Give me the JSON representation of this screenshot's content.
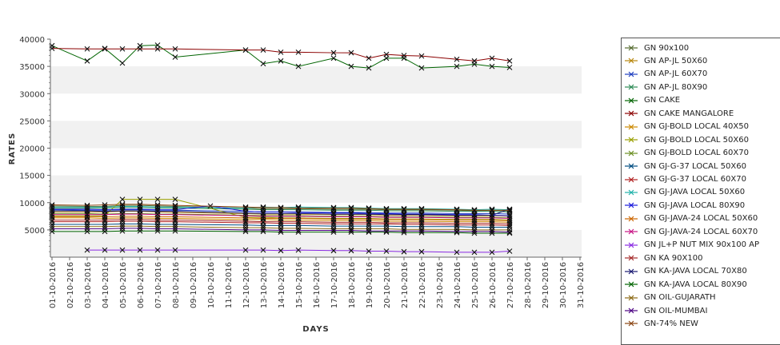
{
  "chart_data": {
    "type": "line",
    "xlabel": "DAYS",
    "ylabel": "RATES",
    "ylim": [
      0,
      40000
    ],
    "yticks": [
      5000,
      10000,
      15000,
      20000,
      25000,
      30000,
      35000,
      40000
    ],
    "ytick_labels": [
      "5000",
      "10000",
      "15000",
      "20000",
      "25000",
      "30000",
      "35000",
      "40000"
    ],
    "categories": [
      "01-10-2016",
      "02-10-2016",
      "03-10-2016",
      "04-10-2016",
      "05-10-2016",
      "06-10-2016",
      "07-10-2016",
      "08-10-2016",
      "09-10-2016",
      "10-10-2016",
      "11-10-2016",
      "12-10-2016",
      "13-10-2016",
      "14-10-2016",
      "15-10-2016",
      "16-10-2016",
      "17-10-2016",
      "18-10-2016",
      "19-10-2016",
      "20-10-2016",
      "21-10-2016",
      "22-10-2016",
      "23-10-2016",
      "24-10-2016",
      "25-10-2016",
      "26-10-2016",
      "27-10-2016",
      "28-10-2016",
      "29-10-2016",
      "30-10-2016",
      "31-10-2016"
    ],
    "grid": "alternating horizontal bands",
    "legend_position": "right",
    "series": [
      {
        "name": "GN 90x100",
        "color": "#556b2f",
        "values": [
          9400,
          null,
          9300,
          9300,
          9500,
          9500,
          9400,
          9300,
          null,
          null,
          null,
          9000,
          8900,
          8900,
          8900,
          null,
          8800,
          8800,
          8800,
          8700,
          8700,
          8700,
          null,
          8600,
          8500,
          8600,
          8500,
          null,
          null,
          null,
          null
        ]
      },
      {
        "name": "GN AP-JL 50X60",
        "color": "#b8860b",
        "values": [
          8300,
          null,
          8300,
          8300,
          8400,
          8400,
          8300,
          8200,
          null,
          null,
          null,
          8000,
          7900,
          7900,
          7900,
          null,
          7800,
          7800,
          7800,
          7700,
          7700,
          7700,
          null,
          7600,
          7600,
          7600,
          7500,
          null,
          null,
          null,
          null
        ]
      },
      {
        "name": "GN AP-JL 60X70",
        "color": "#1f3fbf",
        "values": [
          8700,
          null,
          8600,
          8600,
          8700,
          8700,
          8600,
          8600,
          null,
          null,
          null,
          8400,
          8300,
          8300,
          8300,
          null,
          8200,
          8200,
          8200,
          8100,
          8100,
          8100,
          null,
          8000,
          8000,
          8000,
          7900,
          null,
          null,
          null,
          null
        ]
      },
      {
        "name": "GN AP-JL 80X90",
        "color": "#2e8b57",
        "values": [
          9000,
          null,
          9000,
          9000,
          9100,
          9100,
          9000,
          9000,
          null,
          null,
          null,
          8800,
          8700,
          8700,
          8700,
          null,
          8600,
          8600,
          8600,
          8500,
          8500,
          8500,
          null,
          8400,
          8400,
          8400,
          8300,
          null,
          null,
          null,
          null
        ]
      },
      {
        "name": "GN CAKE",
        "color": "#006400",
        "values": [
          38800,
          null,
          36000,
          38300,
          35600,
          38800,
          38900,
          36700,
          null,
          null,
          null,
          38000,
          35500,
          36000,
          35000,
          null,
          36500,
          35000,
          34700,
          36500,
          36500,
          34700,
          null,
          35000,
          35400,
          35000,
          34800,
          null,
          null,
          null,
          null
        ]
      },
      {
        "name": "GN CAKE MANGALORE",
        "color": "#8b0000",
        "values": [
          38300,
          null,
          38200,
          38200,
          38200,
          38200,
          38200,
          38200,
          null,
          null,
          null,
          38000,
          38000,
          37600,
          37600,
          null,
          37500,
          37500,
          36500,
          37200,
          37000,
          36900,
          null,
          36300,
          36000,
          36500,
          36000,
          null,
          null,
          null,
          null
        ]
      },
      {
        "name": "GN GJ-BOLD LOCAL 40X50",
        "color": "#cc8800",
        "values": [
          7200,
          null,
          7200,
          7100,
          7200,
          7200,
          7100,
          7100,
          null,
          null,
          null,
          6900,
          6900,
          6800,
          6800,
          null,
          6700,
          6700,
          6700,
          6600,
          6600,
          6600,
          null,
          6500,
          6500,
          6500,
          6400,
          null,
          null,
          null,
          null
        ]
      },
      {
        "name": "GN GJ-BOLD LOCAL 50X60",
        "color": "#9aa000",
        "values": [
          7600,
          null,
          7600,
          7600,
          10600,
          10600,
          10600,
          10600,
          null,
          null,
          null,
          7300,
          7300,
          7200,
          7200,
          null,
          7100,
          7100,
          7100,
          7000,
          7000,
          7000,
          null,
          6900,
          6900,
          6900,
          6800,
          null,
          null,
          null,
          null
        ]
      },
      {
        "name": "GN GJ-BOLD LOCAL 60X70",
        "color": "#6b8e23",
        "values": [
          8000,
          null,
          8000,
          7900,
          8000,
          8000,
          7900,
          7900,
          null,
          null,
          null,
          7700,
          7600,
          7600,
          7600,
          null,
          7500,
          7500,
          7500,
          7400,
          7400,
          7400,
          null,
          7300,
          7300,
          7300,
          7200,
          null,
          null,
          null,
          null
        ]
      },
      {
        "name": "GN GJ-G-37 LOCAL 50X60",
        "color": "#004c80",
        "values": [
          6000,
          null,
          6000,
          6000,
          6100,
          6100,
          6000,
          6000,
          null,
          null,
          null,
          5900,
          5800,
          5800,
          5800,
          null,
          5700,
          5700,
          5700,
          5700,
          5600,
          5600,
          null,
          5600,
          5500,
          5500,
          5500,
          null,
          null,
          null,
          null
        ]
      },
      {
        "name": "GN GJ-G-37 LOCAL 60X70",
        "color": "#b22222",
        "values": [
          6500,
          null,
          6500,
          6500,
          6600,
          6600,
          6500,
          6500,
          null,
          null,
          null,
          6300,
          6300,
          6200,
          6200,
          null,
          6100,
          6100,
          6100,
          6100,
          6000,
          6000,
          null,
          5900,
          5900,
          5900,
          5800,
          null,
          null,
          null,
          null
        ]
      },
      {
        "name": "GN GJ-JAVA LOCAL 50X60",
        "color": "#20b2aa",
        "values": [
          9200,
          null,
          9200,
          9200,
          9300,
          9300,
          9200,
          9200,
          null,
          null,
          null,
          9000,
          9200,
          9100,
          9200,
          null,
          9100,
          9100,
          9000,
          8900,
          8900,
          8900,
          null,
          8800,
          8700,
          8800,
          8700,
          null,
          null,
          null,
          null
        ]
      },
      {
        "name": "GN GJ-JAVA LOCAL 80X90",
        "color": "#1a1adb",
        "values": [
          8800,
          null,
          8800,
          8700,
          8800,
          8800,
          8700,
          8700,
          null,
          9400,
          null,
          8400,
          8300,
          8300,
          8200,
          null,
          8100,
          8100,
          8000,
          8000,
          7900,
          7900,
          null,
          7800,
          7800,
          7700,
          7600,
          null,
          null,
          null,
          null
        ]
      },
      {
        "name": "GN GJ-JAVA-24 LOCAL 50X60",
        "color": "#cc6600",
        "values": [
          7400,
          null,
          7400,
          7400,
          7500,
          7500,
          7400,
          7400,
          null,
          null,
          null,
          7200,
          7100,
          7100,
          7100,
          null,
          7000,
          7000,
          7000,
          6900,
          6900,
          6900,
          null,
          6800,
          6800,
          6800,
          6700,
          null,
          null,
          null,
          null
        ]
      },
      {
        "name": "GN GJ-JAVA-24 LOCAL 60X70",
        "color": "#c71585",
        "values": [
          7800,
          null,
          7800,
          7800,
          7900,
          7900,
          7800,
          7800,
          null,
          null,
          null,
          7600,
          7500,
          7500,
          7500,
          null,
          7400,
          7400,
          7400,
          7300,
          7300,
          7300,
          null,
          7200,
          7200,
          7200,
          7100,
          null,
          null,
          null,
          null
        ]
      },
      {
        "name": "GN JL+P NUT MIX 90x100 AP",
        "color": "#8a2be2",
        "values": [
          null,
          null,
          1300,
          1300,
          1300,
          1300,
          1300,
          1300,
          null,
          null,
          null,
          1300,
          1300,
          1200,
          1300,
          null,
          1200,
          1200,
          1100,
          1100,
          1000,
          1000,
          null,
          900,
          900,
          900,
          1100,
          null,
          null,
          null,
          null
        ]
      },
      {
        "name": "GN KA 90X100",
        "color": "#a52a2a",
        "values": [
          6800,
          null,
          6800,
          6800,
          6900,
          6900,
          6800,
          6800,
          null,
          null,
          null,
          6600,
          6500,
          6500,
          6500,
          null,
          6400,
          6400,
          6400,
          6300,
          6300,
          6300,
          null,
          6200,
          6200,
          6200,
          6100,
          null,
          null,
          null,
          null
        ]
      },
      {
        "name": "GN KA-JAVA LOCAL 70X80",
        "color": "#191970",
        "values": [
          8500,
          null,
          8500,
          8400,
          8500,
          8500,
          8400,
          8400,
          null,
          null,
          null,
          8100,
          8000,
          8000,
          8000,
          null,
          7900,
          7900,
          7900,
          7800,
          7800,
          7800,
          null,
          7700,
          7700,
          7700,
          8800,
          null,
          null,
          null,
          null
        ]
      },
      {
        "name": "GN KA-JAVA LOCAL 80X90",
        "color": "#006400",
        "values": [
          4700,
          null,
          4700,
          4700,
          4800,
          4800,
          4800,
          4800,
          null,
          null,
          null,
          4700,
          4700,
          4600,
          4600,
          null,
          4600,
          4600,
          4600,
          4600,
          4500,
          4500,
          null,
          4500,
          4400,
          4400,
          4400,
          null,
          null,
          null,
          null
        ]
      },
      {
        "name": "GN OIL-GUJARATH",
        "color": "#8b6914",
        "values": [
          5600,
          null,
          5600,
          5600,
          5700,
          5700,
          5600,
          5600,
          null,
          null,
          null,
          5400,
          5400,
          5300,
          5300,
          null,
          5200,
          5200,
          5200,
          5200,
          5100,
          5100,
          null,
          5100,
          5000,
          5000,
          5000,
          null,
          null,
          null,
          null
        ]
      },
      {
        "name": "GN OIL-MUMBAI",
        "color": "#4b0082",
        "values": [
          5200,
          null,
          5200,
          5200,
          5300,
          5300,
          5200,
          5200,
          null,
          null,
          null,
          5000,
          5000,
          4900,
          4900,
          null,
          4900,
          4900,
          4800,
          4800,
          4800,
          4800,
          null,
          4700,
          4700,
          4700,
          4600,
          null,
          null,
          null,
          null
        ]
      },
      {
        "name": "GN-74% NEW",
        "color": "#8b4513",
        "values": [
          9600,
          null,
          9500,
          9600,
          9700,
          9700,
          9600,
          9500,
          null,
          null,
          null,
          9200,
          9100,
          9100,
          9000,
          null,
          9000,
          9000,
          8900,
          8800,
          8800,
          8800,
          null,
          8700,
          8600,
          8600,
          8600,
          null,
          null,
          null,
          null
        ]
      }
    ]
  }
}
